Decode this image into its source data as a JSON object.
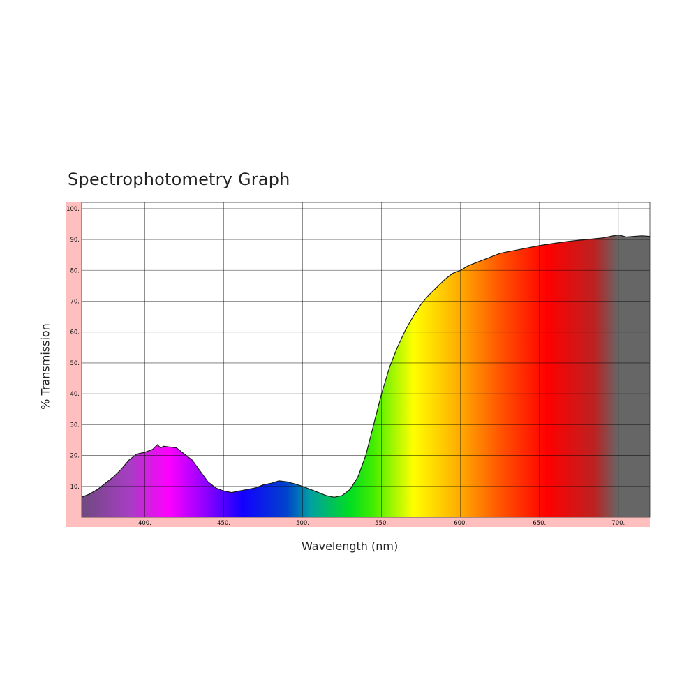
{
  "chart_data": {
    "type": "area",
    "title": "Spectrophotometry Graph",
    "xlabel": "Wavelength (nm)",
    "ylabel": "% Transmission",
    "xlim": [
      360,
      720
    ],
    "ylim": [
      0,
      102
    ],
    "x_ticks": [
      400,
      450,
      500,
      550,
      600,
      650,
      700
    ],
    "x_tick_labels": [
      "400.",
      "450.",
      "500.",
      "550.",
      "600.",
      "650.",
      "700."
    ],
    "y_ticks": [
      10,
      20,
      30,
      40,
      50,
      60,
      70,
      80,
      90,
      100
    ],
    "y_tick_labels": [
      "10.",
      "20.",
      "30.",
      "40.",
      "50.",
      "60.",
      "70.",
      "80.",
      "90.",
      "100."
    ],
    "grid": true,
    "series": [
      {
        "x": [
          360,
          365,
          370,
          375,
          380,
          385,
          390,
          395,
          400,
          405,
          408,
          410,
          412,
          415,
          420,
          425,
          430,
          435,
          440,
          445,
          450,
          455,
          460,
          465,
          470,
          475,
          480,
          485,
          490,
          495,
          500,
          505,
          510,
          515,
          520,
          525,
          530,
          535,
          540,
          545,
          550,
          555,
          560,
          565,
          570,
          575,
          580,
          585,
          590,
          595,
          600,
          605,
          610,
          615,
          620,
          625,
          630,
          640,
          650,
          660,
          670,
          680,
          690,
          695,
          700,
          705,
          710,
          715,
          720
        ],
        "y": [
          6.5,
          7.5,
          9.0,
          11.0,
          13.0,
          15.5,
          18.5,
          20.5,
          21.0,
          22.0,
          23.5,
          22.5,
          23.0,
          22.8,
          22.5,
          20.5,
          18.5,
          15.0,
          11.5,
          9.5,
          8.5,
          8.0,
          8.5,
          9.0,
          9.5,
          10.5,
          11.0,
          11.8,
          11.5,
          10.8,
          10.0,
          9.0,
          8.0,
          7.0,
          6.5,
          7.0,
          9.0,
          13.0,
          20.0,
          30.0,
          40.0,
          48.5,
          55.0,
          60.5,
          65.0,
          69.0,
          72.0,
          74.5,
          77.0,
          79.0,
          80.0,
          81.5,
          82.5,
          83.5,
          84.5,
          85.5,
          86.0,
          87.0,
          88.0,
          88.8,
          89.5,
          90.0,
          90.5,
          91.0,
          91.5,
          90.8,
          91.0,
          91.2,
          91.0
        ]
      }
    ],
    "spectrum_colors": [
      {
        "wavelength": 360,
        "color": "#6e4a7e"
      },
      {
        "wavelength": 390,
        "color": "#a63ec2"
      },
      {
        "wavelength": 415,
        "color": "#ff00ff"
      },
      {
        "wavelength": 440,
        "color": "#8800ff"
      },
      {
        "wavelength": 462,
        "color": "#1200ff"
      },
      {
        "wavelength": 490,
        "color": "#0044cc"
      },
      {
        "wavelength": 505,
        "color": "#00a0a0"
      },
      {
        "wavelength": 530,
        "color": "#00dd22"
      },
      {
        "wavelength": 545,
        "color": "#44ee00"
      },
      {
        "wavelength": 570,
        "color": "#ffff00"
      },
      {
        "wavelength": 600,
        "color": "#ffaa00"
      },
      {
        "wavelength": 625,
        "color": "#ff5500"
      },
      {
        "wavelength": 655,
        "color": "#ff0000"
      },
      {
        "wavelength": 685,
        "color": "#bb2222"
      },
      {
        "wavelength": 700,
        "color": "#666666"
      },
      {
        "wavelength": 720,
        "color": "#666666"
      }
    ],
    "colors": {
      "frame": "#ffbfbf",
      "grid": "#000000",
      "curve": "#1a1a1a"
    }
  }
}
